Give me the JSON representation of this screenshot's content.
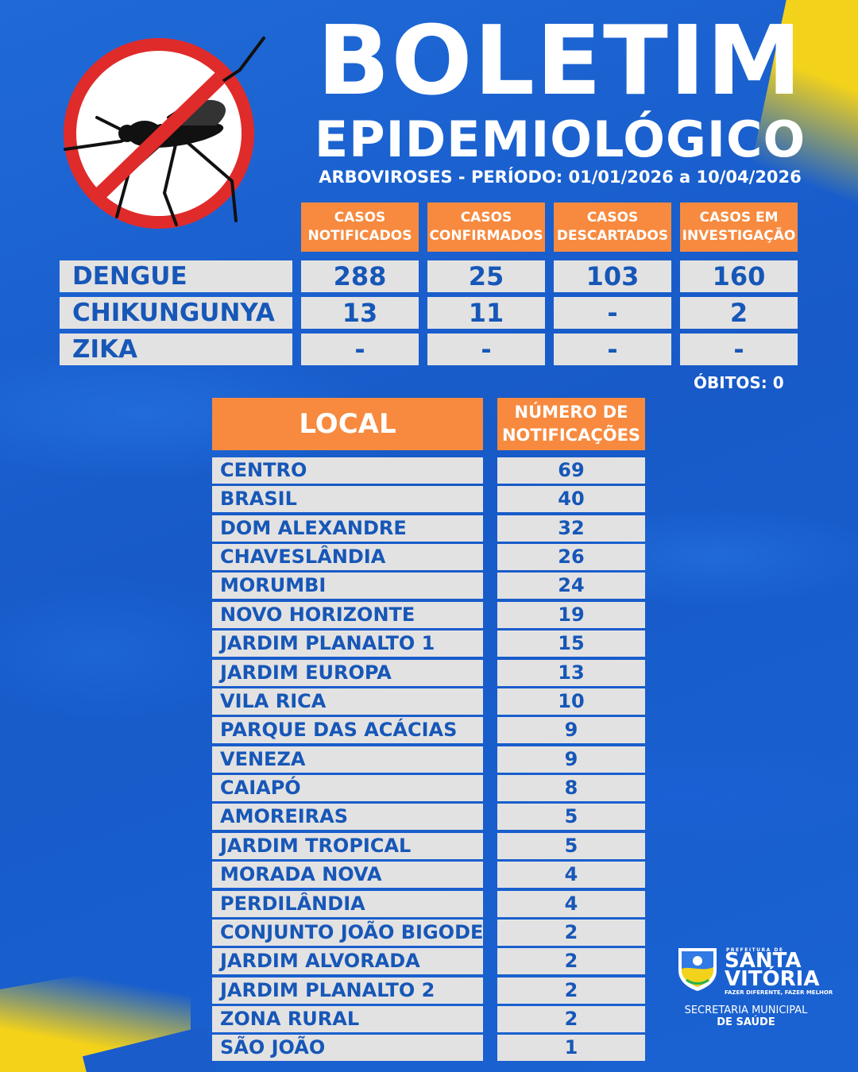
{
  "header": {
    "title_line1": "BOLETIM",
    "title_line2": "EPIDEMIOLÓGICO",
    "subtitle": "ARBOVIROSES - PERÍODO: 01/01/2026 a 10/04/2026"
  },
  "cases_table": {
    "columns": [
      "CASOS\nNOTIFICADOS",
      "CASOS\nCONFIRMADOS",
      "CASOS\nDESCARTADOS",
      "CASOS EM\nINVESTIGAÇÃO"
    ],
    "rows": [
      {
        "disease": "DENGUE",
        "values": [
          "288",
          "25",
          "103",
          "160"
        ]
      },
      {
        "disease": "CHIKUNGUNYA",
        "values": [
          "13",
          "11",
          "-",
          "2"
        ]
      },
      {
        "disease": "ZIKA",
        "values": [
          "-",
          "-",
          "-",
          "-"
        ]
      }
    ]
  },
  "obitos": "ÓBITOS: 0",
  "locations_table": {
    "header_local": "LOCAL",
    "header_count": "NÚMERO DE\nNOTIFICAÇÕES",
    "rows": [
      {
        "name": "CENTRO",
        "count": "69"
      },
      {
        "name": "BRASIL",
        "count": "40"
      },
      {
        "name": "DOM ALEXANDRE",
        "count": "32"
      },
      {
        "name": "CHAVESLÂNDIA",
        "count": "26"
      },
      {
        "name": "MORUMBI",
        "count": "24"
      },
      {
        "name": "NOVO HORIZONTE",
        "count": "19"
      },
      {
        "name": "JARDIM PLANALTO 1",
        "count": "15"
      },
      {
        "name": "JARDIM EUROPA",
        "count": "13"
      },
      {
        "name": "VILA RICA",
        "count": "10"
      },
      {
        "name": "PARQUE DAS ACÁCIAS",
        "count": "9"
      },
      {
        "name": "VENEZA",
        "count": "9"
      },
      {
        "name": "CAIAPÓ",
        "count": "8"
      },
      {
        "name": "AMOREIRAS",
        "count": "5"
      },
      {
        "name": "JARDIM TROPICAL",
        "count": "5"
      },
      {
        "name": "MORADA NOVA",
        "count": "4"
      },
      {
        "name": "PERDILÂNDIA",
        "count": "4"
      },
      {
        "name": "CONJUNTO JOÃO BIGODE",
        "count": "2"
      },
      {
        "name": "JARDIM ALVORADA",
        "count": "2"
      },
      {
        "name": "JARDIM PLANALTO 2",
        "count": "2"
      },
      {
        "name": "ZONA RURAL",
        "count": "2"
      },
      {
        "name": "SÃO JOÃO",
        "count": "1"
      }
    ]
  },
  "logo": {
    "prefix": "PREFEITURA DE",
    "city_line1": "SANTA",
    "city_line2": "VITÓRIA",
    "motto": "FAZER DIFERENTE, FAZER MELHOR",
    "secretaria_line1": "SECRETARIA MUNICIPAL",
    "secretaria_line2": "DE SAÚDE"
  },
  "colors": {
    "background_blue": "#1a5fcf",
    "header_orange": "#f78a3f",
    "cell_gray": "#e3e2e2",
    "cell_text_blue": "#1657b8",
    "accent_yellow": "#f3d21b",
    "sign_red": "#e02b2b"
  },
  "icons": [
    "no-mosquito-icon",
    "city-crest-icon"
  ]
}
